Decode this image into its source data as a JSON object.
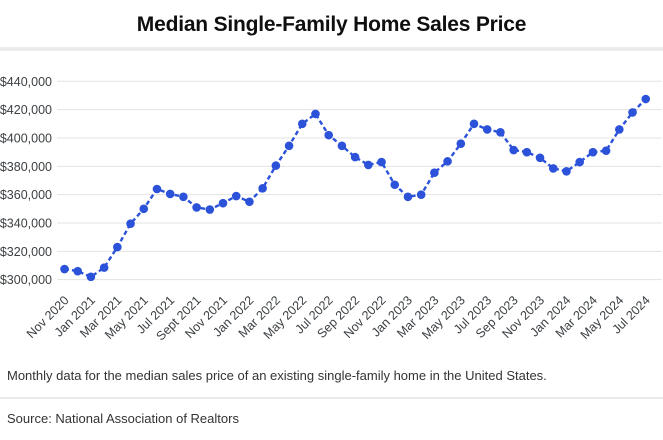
{
  "title": "Median Single-Family Home Sales Price",
  "caption": "Monthly data for the median sales price of an existing single-family home in the United States.",
  "source": "Source: National Association of Realtors",
  "colors": {
    "accent": "#2b52d9",
    "gridline": "#e3e3e3",
    "axis_text": "#3c4043",
    "title_text": "#0f0f0f",
    "body_text": "#333333"
  },
  "chart_data": {
    "type": "line",
    "title": "Median Single-Family Home Sales Price",
    "xlabel": "",
    "ylabel": "",
    "ylim": [
      300000,
      440000
    ],
    "y_step": 20000,
    "grid": "horizontal",
    "line_style": "dashed",
    "marker": "circle",
    "legend": "none",
    "y_tick_labels": [
      "$300,000",
      "$320,000",
      "$340,000",
      "$360,000",
      "$380,000",
      "$400,000",
      "$420,000",
      "$440,000"
    ],
    "x_tick_labels": [
      "Nov 2020",
      "Jan 2021",
      "Mar 2021",
      "May 2021",
      "Jul 2021",
      "Sept 2021",
      "Nov 2021",
      "Jan 2022",
      "Mar 2022",
      "May 2022",
      "Jul 2022",
      "Sep 2022",
      "Nov 2022",
      "Jan 2023",
      "Mar 2023",
      "May 2023",
      "Jul 2023",
      "Sep 2023",
      "Nov 2023",
      "Jan 2024",
      "Mar 2024",
      "May 2024",
      "Jul 2024"
    ],
    "x": [
      "Nov 2020",
      "Dec 2020",
      "Jan 2021",
      "Feb 2021",
      "Mar 2021",
      "Apr 2021",
      "May 2021",
      "Jun 2021",
      "Jul 2021",
      "Aug 2021",
      "Sep 2021",
      "Oct 2021",
      "Nov 2021",
      "Dec 2021",
      "Jan 2022",
      "Feb 2022",
      "Mar 2022",
      "Apr 2022",
      "May 2022",
      "Jun 2022",
      "Jul 2022",
      "Aug 2022",
      "Sep 2022",
      "Oct 2022",
      "Nov 2022",
      "Dec 2022",
      "Jan 2023",
      "Feb 2023",
      "Mar 2023",
      "Apr 2023",
      "May 2023",
      "Jun 2023",
      "Jul 2023",
      "Aug 2023",
      "Sep 2023",
      "Oct 2023",
      "Nov 2023",
      "Dec 2023",
      "Jan 2024",
      "Feb 2024",
      "Mar 2024",
      "Apr 2024",
      "May 2024",
      "Jun 2024",
      "Jul 2024"
    ],
    "values": [
      307500,
      306000,
      302000,
      308500,
      323000,
      339500,
      350000,
      364000,
      360500,
      358500,
      351000,
      349500,
      354000,
      359000,
      355000,
      364500,
      380500,
      394500,
      410000,
      417000,
      402000,
      394500,
      386500,
      381000,
      383000,
      367000,
      358500,
      360000,
      375500,
      383500,
      396000,
      410000,
      406000,
      404000,
      391500,
      390000,
      386000,
      378500,
      376500,
      383000,
      390000,
      391000,
      406000,
      418000,
      427500
    ]
  }
}
